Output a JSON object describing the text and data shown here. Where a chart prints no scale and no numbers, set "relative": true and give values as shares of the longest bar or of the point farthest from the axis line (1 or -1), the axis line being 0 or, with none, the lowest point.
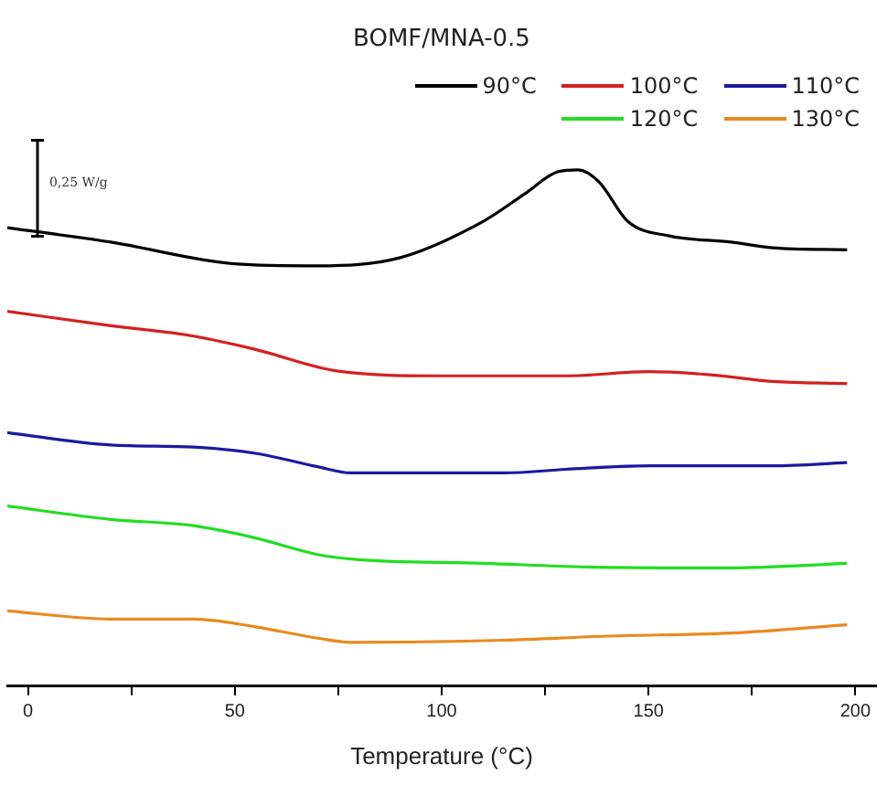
{
  "chart_data": {
    "type": "line",
    "title": "BOMF/MNA-0.5",
    "xlabel": "Temperature (°C)",
    "relative": true,
    "legend": "top right",
    "grid": false,
    "marker": "none",
    "line_style": "solid",
    "xlim": [
      -5,
      205
    ],
    "xticks": [
      0,
      {
        "value": 25,
        "label": null
      },
      50,
      {
        "value": 75,
        "label": null
      },
      100,
      {
        "value": 125,
        "label": null
      },
      150,
      {
        "value": 175,
        "label": null
      },
      200
    ],
    "annotations": [
      "0,25 W/g"
    ],
    "series": [
      {
        "name": "90°C",
        "color": "#000000",
        "x": [
          -5,
          20,
          50,
          70,
          90,
          110,
          120,
          128,
          133,
          138,
          145,
          155,
          170,
          180,
          198
        ],
        "values": [
          0.888,
          0.86,
          0.818,
          0.814,
          0.83,
          0.9,
          0.953,
          0.996,
          1,
          0.977,
          0.9,
          0.872,
          0.86,
          0.849,
          0.845
        ]
      },
      {
        "name": "100°C",
        "color": "#d42020",
        "x": [
          -5,
          20,
          40,
          55,
          75,
          100,
          130,
          150,
          165,
          180,
          198
        ],
        "values": [
          0.726,
          0.698,
          0.678,
          0.652,
          0.61,
          0.601,
          0.601,
          0.609,
          0.603,
          0.59,
          0.586
        ]
      },
      {
        "name": "110°C",
        "color": "#1a1aa0",
        "x": [
          -5,
          20,
          40,
          55,
          70,
          78,
          115,
          130,
          150,
          180,
          198
        ],
        "values": [
          0.491,
          0.467,
          0.463,
          0.451,
          0.425,
          0.413,
          0.413,
          0.42,
          0.427,
          0.427,
          0.433
        ]
      },
      {
        "name": "120°C",
        "color": "#22dd22",
        "x": [
          -5,
          20,
          40,
          55,
          70,
          80,
          110,
          135,
          170,
          198
        ],
        "values": [
          0.349,
          0.323,
          0.311,
          0.287,
          0.255,
          0.245,
          0.238,
          0.231,
          0.229,
          0.238
        ]
      },
      {
        "name": "130°C",
        "color": "#e88a1e",
        "x": [
          -5,
          20,
          40,
          55,
          70,
          78,
          115,
          140,
          170,
          198
        ],
        "values": [
          0.146,
          0.13,
          0.13,
          0.115,
          0.093,
          0.085,
          0.089,
          0.097,
          0.103,
          0.119
        ]
      }
    ]
  }
}
